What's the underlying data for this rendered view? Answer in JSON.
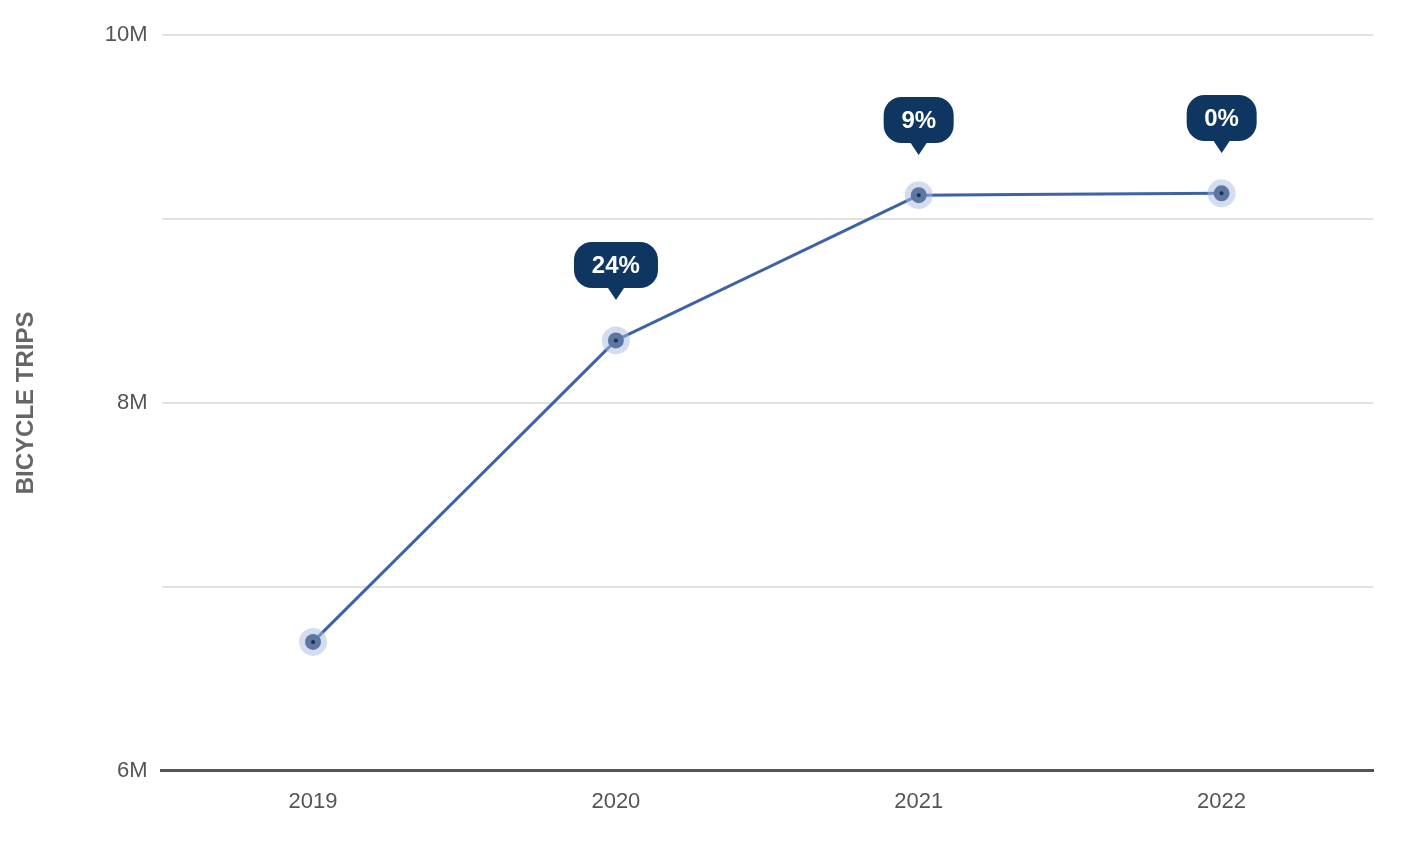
{
  "chart_data": {
    "type": "line",
    "ylabel": "BICYCLE TRIPS",
    "categories": [
      "2019",
      "2020",
      "2021",
      "2022"
    ],
    "series": [
      {
        "color": "#3d63a6",
        "values": [
          6.7,
          8.34,
          9.13,
          9.14
        ]
      }
    ],
    "annotations": [
      {
        "text": "24%",
        "x": "2020",
        "y": 8.34
      },
      {
        "text": "9%",
        "x": "2021",
        "y": 9.13
      },
      {
        "text": "0%",
        "x": "2022",
        "y": 9.14
      }
    ],
    "ylim": [
      6,
      10
    ],
    "yticks": [
      {
        "value": 6,
        "label": "6M"
      },
      {
        "value": 7,
        "label": null
      },
      {
        "value": 8,
        "label": "8M"
      },
      {
        "value": 9,
        "label": null
      },
      {
        "value": 10,
        "label": "10M"
      }
    ],
    "grid": "y",
    "marker": "circle",
    "line_style": "solid",
    "legend": false
  }
}
